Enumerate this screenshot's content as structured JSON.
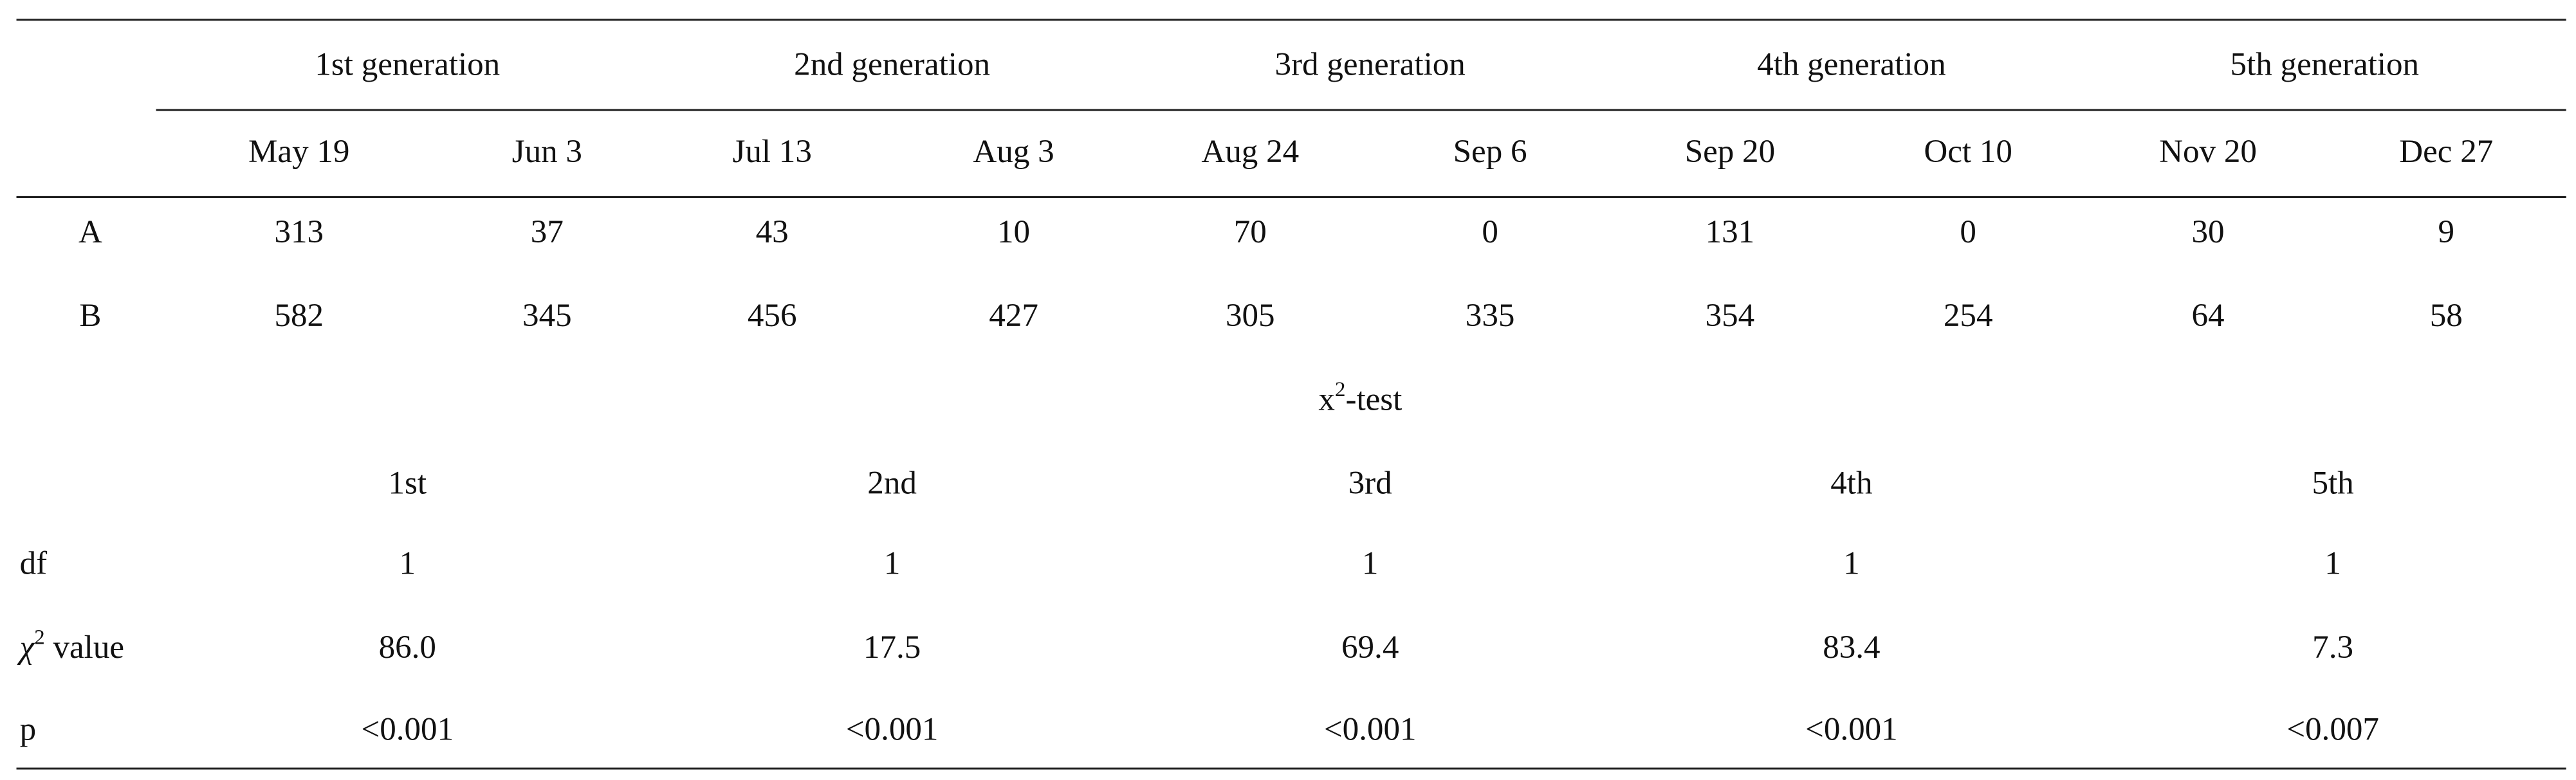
{
  "table": {
    "generations": [
      "1st generation",
      "2nd generation",
      "3rd generation",
      "4th generation",
      "5th generation"
    ],
    "dates": [
      "May 19",
      "Jun 3",
      "Jul 13",
      "Aug 3",
      "Aug 24",
      "Sep 6",
      "Sep 20",
      "Oct 10",
      "Nov 20",
      "Dec 27"
    ],
    "rows": [
      {
        "label": "A",
        "values": [
          "313",
          "37",
          "43",
          "10",
          "70",
          "0",
          "131",
          "0",
          "30",
          "9"
        ]
      },
      {
        "label": "B",
        "values": [
          "582",
          "345",
          "456",
          "427",
          "305",
          "335",
          "354",
          "254",
          "64",
          "58"
        ]
      }
    ],
    "chi_test": {
      "title": {
        "base": "x",
        "sup": "2",
        "rest": "-test"
      },
      "columns": [
        "1st",
        "2nd",
        "3rd",
        "4th",
        "5th"
      ],
      "rows": [
        {
          "label": "df",
          "values": [
            "1",
            "1",
            "1",
            "1",
            "1"
          ]
        },
        {
          "label": {
            "symbol": "χ",
            "sup": "2",
            "rest": " value"
          },
          "values": [
            "86.0",
            "17.5",
            "69.4",
            "83.4",
            "7.3"
          ]
        },
        {
          "label": "p",
          "values": [
            "<0.001",
            "<0.001",
            "<0.001",
            "<0.001",
            "<0.007"
          ]
        }
      ]
    }
  }
}
